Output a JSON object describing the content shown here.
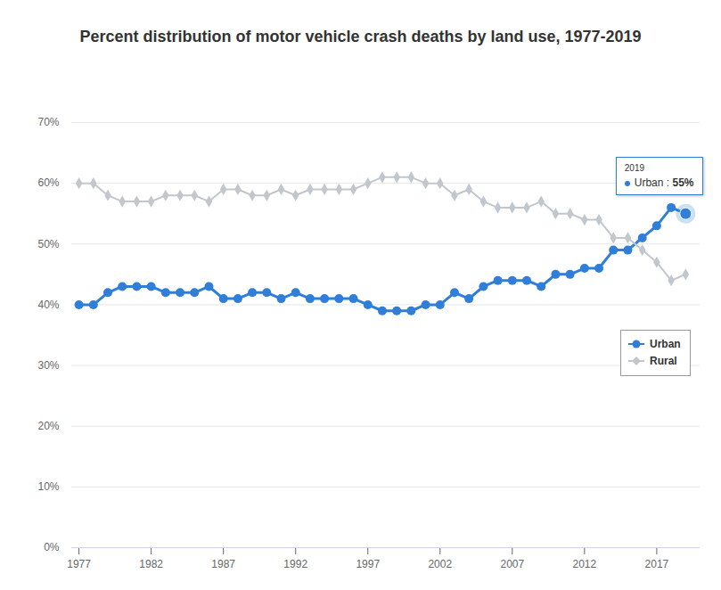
{
  "chart_data": {
    "type": "line",
    "title": "Percent distribution of motor vehicle crash deaths by land use, 1977-2019",
    "x": [
      1977,
      1978,
      1979,
      1980,
      1981,
      1982,
      1983,
      1984,
      1985,
      1986,
      1987,
      1988,
      1989,
      1990,
      1991,
      1992,
      1993,
      1994,
      1995,
      1996,
      1997,
      1998,
      1999,
      2000,
      2001,
      2002,
      2003,
      2004,
      2005,
      2006,
      2007,
      2008,
      2009,
      2010,
      2011,
      2012,
      2013,
      2014,
      2015,
      2016,
      2017,
      2018,
      2019
    ],
    "series": [
      {
        "name": "Urban",
        "color": "#2f7ed8",
        "marker": "circle",
        "values": [
          40,
          40,
          42,
          43,
          43,
          43,
          42,
          42,
          42,
          43,
          41,
          41,
          42,
          42,
          41,
          42,
          41,
          41,
          41,
          41,
          40,
          39,
          39,
          39,
          40,
          40,
          42,
          41,
          43,
          44,
          44,
          44,
          43,
          45,
          45,
          46,
          46,
          49,
          49,
          51,
          53,
          56,
          55
        ]
      },
      {
        "name": "Rural",
        "color": "#c2c7cd",
        "marker": "diamond",
        "values": [
          60,
          60,
          58,
          57,
          57,
          57,
          58,
          58,
          58,
          57,
          59,
          59,
          58,
          58,
          59,
          58,
          59,
          59,
          59,
          59,
          60,
          61,
          61,
          61,
          60,
          60,
          58,
          59,
          57,
          56,
          56,
          56,
          57,
          55,
          55,
          54,
          54,
          51,
          51,
          49,
          47,
          44,
          45
        ]
      }
    ],
    "xlim": [
      1976.5,
      2020
    ],
    "xticks": [
      1977,
      1982,
      1987,
      1992,
      1997,
      2002,
      2007,
      2012,
      2017
    ],
    "ylim": [
      0,
      70
    ],
    "yticks": [
      {
        "value": 0,
        "label": "0%"
      },
      {
        "value": 10,
        "label": "10%"
      },
      {
        "value": 20,
        "label": "20%"
      },
      {
        "value": 30,
        "label": "30%"
      },
      {
        "value": 40,
        "label": "40%"
      },
      {
        "value": 50,
        "label": "50%"
      },
      {
        "value": 60,
        "label": "60%"
      },
      {
        "value": 70,
        "label": "70%"
      }
    ],
    "grid": true,
    "legend": "right",
    "annotations": [
      {
        "series": "Urban",
        "x": 2019,
        "y": 55,
        "lines": [
          "2019",
          "Urban : 55%"
        ]
      }
    ]
  }
}
